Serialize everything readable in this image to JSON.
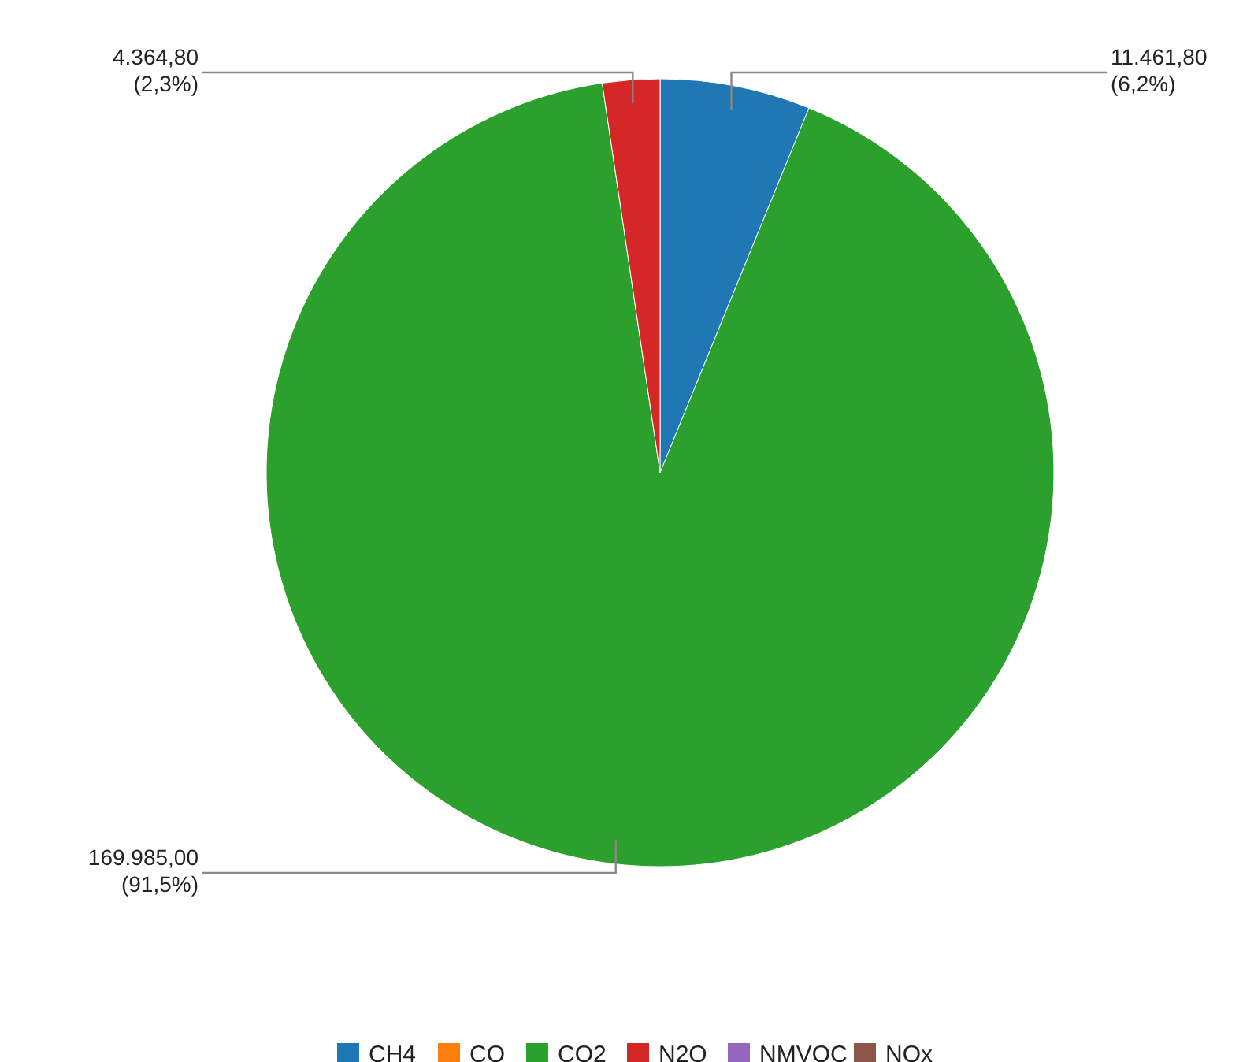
{
  "chart_data": {
    "type": "pie",
    "categories": [
      "CH4",
      "CO",
      "CO2",
      "N2O",
      "NMVOC",
      "NOx"
    ],
    "values": [
      11461.8,
      0,
      169985.0,
      4364.8,
      0,
      0
    ],
    "colors": [
      "#1f77b4",
      "#ff7f0e",
      "#2ca02c",
      "#d62728",
      "#9467bd",
      "#8c564b"
    ],
    "value_labels": [
      "11.461,80 (6,2%)",
      null,
      "169.985,00 (91,5%)",
      "4.364,80 (2,3%)",
      null,
      null
    ],
    "legend": "bottom"
  }
}
